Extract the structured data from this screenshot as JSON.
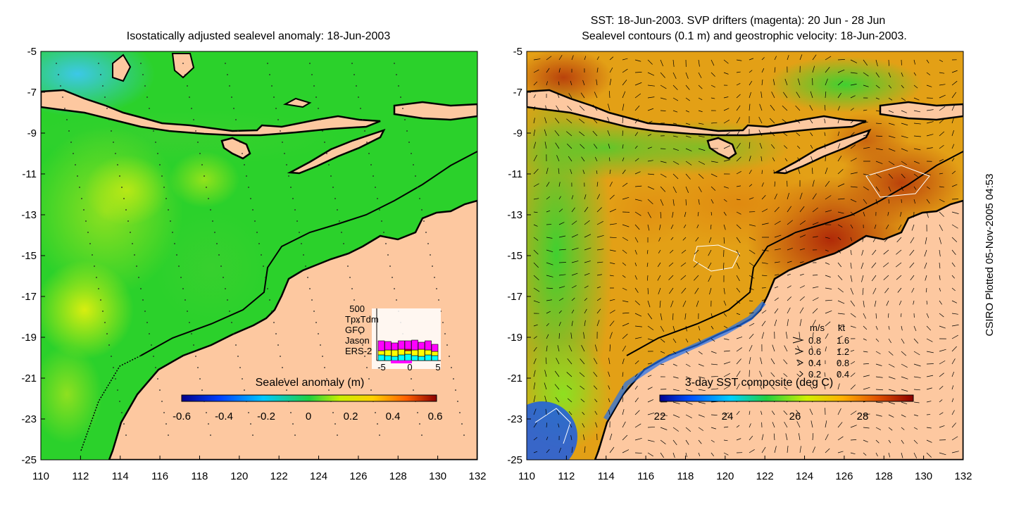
{
  "figure": {
    "credit": "CSIRO Plotted 05-Nov-2005 04:53",
    "colors": {
      "land": "#fdc8a0",
      "coast": "#000000",
      "sla_base": "#2bd12b",
      "sst_warm": "#d9711a"
    }
  },
  "left_panel": {
    "title": "Isostatically adjusted sealevel anomaly: 18-Jun-2003",
    "x_ticks": [
      "110",
      "112",
      "114",
      "116",
      "118",
      "120",
      "122",
      "124",
      "126",
      "128",
      "130",
      "132"
    ],
    "y_ticks": [
      "-5",
      "-7",
      "-9",
      "-11",
      "-13",
      "-15",
      "-17",
      "-19",
      "-21",
      "-23",
      "-25"
    ],
    "colorbar": {
      "label": "Sealevel anomaly (m)",
      "ticks": [
        "-0.6",
        "-0.4",
        "-0.2",
        "0",
        "0.2",
        "0.4",
        "0.6"
      ],
      "range": [
        -0.6,
        0.6
      ]
    },
    "inset": {
      "ymax_label": "500",
      "x_ticks": [
        "-5",
        "0",
        "5"
      ],
      "legend": [
        {
          "name": "TpxTdm",
          "color": "#ff00ff"
        },
        {
          "name": "GFO",
          "color": "#ff0000"
        },
        {
          "name": "Jason",
          "color": "#ffff00"
        },
        {
          "name": "ERS-2",
          "color": "#00ffff"
        }
      ]
    }
  },
  "right_panel": {
    "title_line1": "SST: 18-Jun-2003. SVP drifters (magenta): 20 Jun - 28 Jun",
    "title_line2": "Sealevel contours (0.1 m) and geostrophic velocity: 18-Jun-2003.",
    "x_ticks": [
      "110",
      "112",
      "114",
      "116",
      "118",
      "120",
      "122",
      "124",
      "126",
      "128",
      "130",
      "132"
    ],
    "y_ticks": [
      "-5",
      "-7",
      "-9",
      "-11",
      "-13",
      "-15",
      "-17",
      "-19",
      "-21",
      "-23",
      "-25"
    ],
    "colorbar": {
      "label": "3-day SST composite (deg C)",
      "ticks": [
        "22",
        "24",
        "26",
        "28"
      ],
      "range": [
        22,
        29.5
      ]
    },
    "velocity_legend": {
      "header_ms": "m/s",
      "header_kt": "kt",
      "rows": [
        {
          "ms": "0.8",
          "kt": "1.6"
        },
        {
          "ms": "0.6",
          "kt": "1.2"
        },
        {
          "ms": "0.4",
          "kt": "0.8"
        },
        {
          "ms": "0.2",
          "kt": "0.4"
        }
      ]
    }
  }
}
